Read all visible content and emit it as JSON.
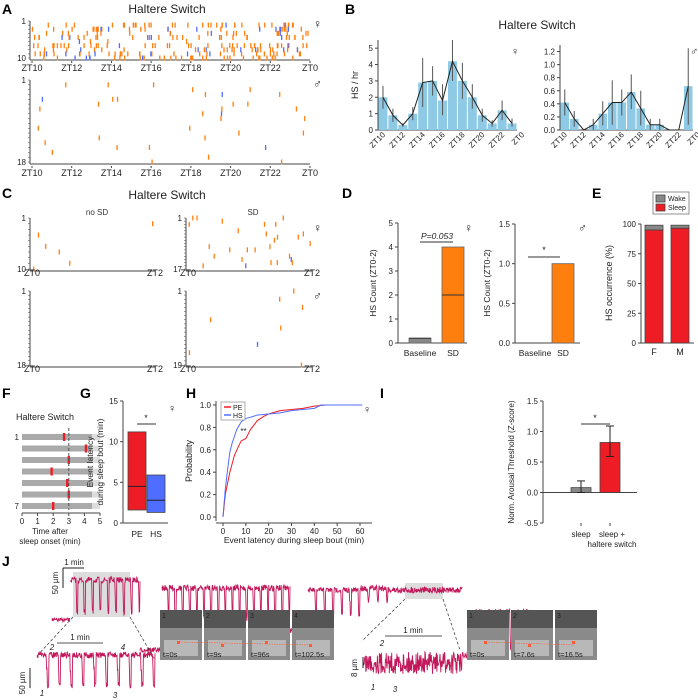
{
  "panels": {
    "A": "A",
    "B": "B",
    "C": "C",
    "D": "D",
    "E": "E",
    "F": "F",
    "G": "G",
    "H": "H",
    "I": "I",
    "J": "J"
  },
  "title": "Haltere Switch",
  "symbols": {
    "female": "♀",
    "male": "♂"
  },
  "colors": {
    "pe_orange": "#ff7f0e",
    "hs_blue": "#4f6dff",
    "bar_blue": "#8ecae6",
    "red": "#ee1c25",
    "gray": "#888888",
    "trace": "#c2185b"
  },
  "panel_a": {
    "ticks": [
      "ZT10",
      "ZT12",
      "ZT14",
      "ZT16",
      "ZT18",
      "ZT20",
      "ZT22",
      "ZT0"
    ],
    "female_rows": [
      "1",
      "10"
    ],
    "male_rows": [
      "1",
      "18"
    ]
  },
  "panel_c": {
    "conditions": [
      "no SD",
      "SD"
    ],
    "x_start": "ZT0",
    "x_end": "ZT2",
    "female_nosd_rows": [
      "1",
      "10"
    ],
    "female_sd_rows": [
      "1",
      "17"
    ],
    "male_nosd_rows": [
      "1",
      "18"
    ],
    "male_sd_rows": [
      "1",
      "19"
    ]
  },
  "panel_f": {
    "title": "Haltere Switch",
    "row_labels": [
      "1",
      "7"
    ],
    "xlabel_line1": "Time after",
    "xlabel_line2": "sleep onset (min)",
    "ticks": [
      "0",
      "1",
      "2",
      "3",
      "4",
      "5"
    ],
    "event_times_min": [
      2.7,
      4.1,
      3.0,
      1.9,
      2.9,
      3.0,
      2.0
    ]
  },
  "chart_data": [
    {
      "id": "B-female",
      "type": "bar",
      "title": "Haltere Switch",
      "ylabel": "HS / hr",
      "ylim": [
        0,
        5.5
      ],
      "yticks": [
        "0",
        "1",
        "2",
        "3",
        "4",
        "5"
      ],
      "categories": [
        "ZT10",
        "ZT11",
        "ZT12",
        "ZT13",
        "ZT14",
        "ZT15",
        "ZT16",
        "ZT17",
        "ZT18",
        "ZT19",
        "ZT20",
        "ZT21",
        "ZT22",
        "ZT23"
      ],
      "xtick_labels": [
        "ZT10",
        "ZT12",
        "ZT14",
        "ZT16",
        "ZT18",
        "ZT20",
        "ZT22",
        "ZT0"
      ],
      "values": [
        2.0,
        0.9,
        0.3,
        1.0,
        2.9,
        3.0,
        1.8,
        4.2,
        3.0,
        2.0,
        0.9,
        0.4,
        1.2,
        0.4
      ],
      "err_low": [
        1.3,
        0.5,
        0.2,
        0.6,
        1.4,
        2.1,
        0.9,
        3.0,
        1.9,
        1.3,
        0.5,
        0.2,
        0.6,
        0.2
      ],
      "err_high": [
        2.7,
        1.3,
        0.4,
        1.4,
        4.4,
        3.9,
        2.8,
        5.5,
        4.1,
        2.8,
        1.3,
        0.6,
        1.8,
        0.7
      ]
    },
    {
      "id": "B-male",
      "type": "bar",
      "ylim": [
        0,
        1.3
      ],
      "yticks": [
        "0.0",
        "0.2",
        "0.4",
        "0.6",
        "0.8",
        "1.0",
        "1.2"
      ],
      "categories": [
        "ZT10",
        "ZT11",
        "ZT12",
        "ZT13",
        "ZT14",
        "ZT15",
        "ZT16",
        "ZT17",
        "ZT18",
        "ZT19",
        "ZT20",
        "ZT21",
        "ZT22",
        "ZT23"
      ],
      "xtick_labels": [
        "ZT10",
        "ZT12",
        "ZT14",
        "ZT16",
        "ZT18",
        "ZT20",
        "ZT22",
        "ZT0"
      ],
      "values": [
        0.42,
        0.17,
        0,
        0.08,
        0.25,
        0.42,
        0.42,
        0.58,
        0.33,
        0.08,
        0.08,
        0,
        0,
        0.67
      ],
      "err_low": [
        0.22,
        0.05,
        0,
        0,
        0.07,
        0.08,
        0.22,
        0.32,
        0.07,
        0,
        0,
        0,
        0,
        0.08
      ],
      "err_high": [
        0.62,
        0.29,
        0,
        0.17,
        0.44,
        0.76,
        0.62,
        0.85,
        0.6,
        0.17,
        0.17,
        0,
        0,
        1.25
      ]
    },
    {
      "id": "D-female",
      "type": "bar",
      "ylabel": "HS Count (ZT0-2)",
      "ylim": [
        0,
        5
      ],
      "yticks": [
        "0",
        "1",
        "2",
        "3",
        "4",
        "5"
      ],
      "categories": [
        "Baseline",
        "SD"
      ],
      "values": [
        0.2,
        4
      ],
      "median": [
        0.2,
        2
      ],
      "annotation": "P=0.053"
    },
    {
      "id": "D-male",
      "type": "bar",
      "ylabel": "HS Count (ZT0-2)",
      "ylim": [
        0,
        1.5
      ],
      "yticks": [
        "0.0",
        "0.5",
        "1.0",
        "1.5"
      ],
      "categories": [
        "Baseline",
        "SD"
      ],
      "values": [
        0,
        1
      ],
      "annotation": "*"
    },
    {
      "id": "E",
      "type": "bar",
      "ylabel": "HS occurrence (%)",
      "ylim": [
        0,
        100
      ],
      "yticks": [
        "0",
        "25",
        "50",
        "75",
        "100"
      ],
      "categories": [
        "F",
        "M"
      ],
      "series": [
        {
          "name": "Sleep",
          "values": [
            95,
            96.5
          ]
        },
        {
          "name": "Wake",
          "values": [
            4,
            2.5
          ]
        }
      ],
      "legend": "top"
    },
    {
      "id": "G",
      "type": "box",
      "ylabel_line1": "Event latency",
      "ylabel_line2": "during sleep bout (min)",
      "ylim": [
        0,
        15
      ],
      "yticks": [
        "0",
        "5",
        "10",
        "15"
      ],
      "categories": [
        "PE",
        "HS"
      ],
      "min": [
        1.6,
        1.3
      ],
      "median": [
        4.5,
        2.8
      ],
      "max": [
        11.2,
        5.9
      ],
      "annotation": "*"
    },
    {
      "id": "H",
      "type": "line",
      "xlabel": "Event latency during sleep bout (min)",
      "ylabel": "Probability",
      "xlim": [
        0,
        65
      ],
      "ylim": [
        0,
        1.05
      ],
      "xticks": [
        "0",
        "10",
        "20",
        "30",
        "40",
        "50",
        "60"
      ],
      "yticks": [
        "0.0",
        "0.2",
        "0.4",
        "0.6",
        "0.8",
        "1.0"
      ],
      "annotation": "**",
      "legend": "top-left",
      "series": [
        {
          "name": "PE",
          "x": [
            0,
            1,
            2,
            3,
            5,
            7,
            8,
            10,
            11,
            12,
            15,
            18,
            20,
            25,
            30,
            35,
            40,
            45,
            50
          ],
          "y": [
            0,
            0.2,
            0.3,
            0.4,
            0.55,
            0.64,
            0.68,
            0.7,
            0.74,
            0.78,
            0.86,
            0.9,
            0.92,
            0.95,
            0.96,
            0.97,
            0.99,
            1.0,
            1.0
          ]
        },
        {
          "name": "HS",
          "x": [
            0,
            1,
            2,
            3,
            4,
            5,
            6,
            8,
            10,
            12,
            15,
            20,
            25,
            30,
            35,
            40,
            43,
            50,
            61
          ],
          "y": [
            0,
            0.25,
            0.42,
            0.58,
            0.66,
            0.72,
            0.78,
            0.85,
            0.88,
            0.89,
            0.91,
            0.92,
            0.93,
            0.95,
            0.96,
            0.97,
            1.0,
            1.0,
            1.0
          ]
        }
      ]
    },
    {
      "id": "I",
      "type": "bar",
      "ylabel": "Norm. Arousal Threshold (Z-score)",
      "ylim": [
        -0.5,
        1.5
      ],
      "yticks": [
        "-0.5",
        "0.0",
        "0.5",
        "1.0",
        "1.5"
      ],
      "categories": [
        "sleep",
        "sleep + haltere switch"
      ],
      "category_lines": [
        [
          "sleep"
        ],
        [
          "sleep +",
          "haltere switch"
        ]
      ],
      "values": [
        0.08,
        0.82
      ],
      "err_low": [
        0,
        0.59
      ],
      "err_high": [
        0.19,
        1.09
      ],
      "annotation": "*"
    }
  ],
  "legend_d": {
    "PE": "PE",
    "HS": "HS"
  },
  "panel_j": {
    "scale_time": "1 min",
    "scale_amp_top": "50 µm",
    "scale_amp_left": "50 µm",
    "scale_amp_right": "8 µm",
    "left_markers": [
      "1",
      "2",
      "3",
      "4"
    ],
    "right_markers": [
      "1",
      "2",
      "3"
    ],
    "left_frames": [
      {
        "n": "1",
        "t": "t=0s"
      },
      {
        "n": "2",
        "t": "t=9s"
      },
      {
        "n": "3",
        "t": "t=96s"
      },
      {
        "n": "4",
        "t": "t=102.5s"
      }
    ],
    "right_frames": [
      {
        "n": "1",
        "t": "t=0s"
      },
      {
        "n": "2",
        "t": "t=7.6s"
      },
      {
        "n": "3",
        "t": "t=16.5s"
      }
    ]
  }
}
